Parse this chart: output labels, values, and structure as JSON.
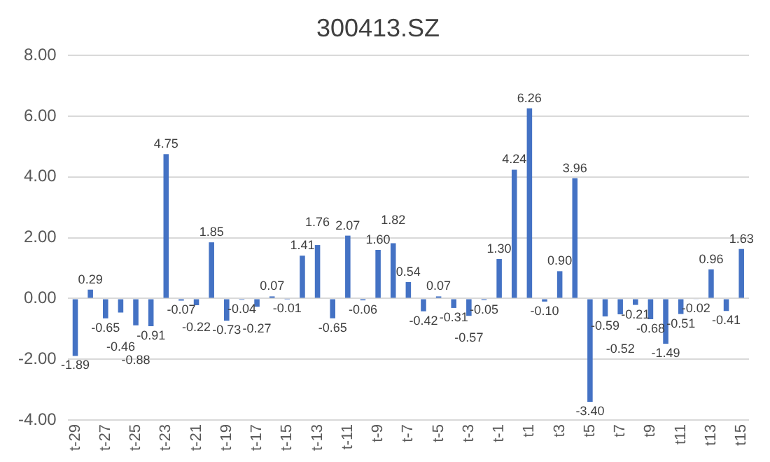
{
  "chart_data": {
    "type": "bar",
    "title": "300413.SZ",
    "categories": [
      "t-29",
      null,
      "t-27",
      null,
      "t-25",
      null,
      "t-23",
      null,
      "t-21",
      null,
      "t-19",
      null,
      "t-17",
      null,
      "t-15",
      null,
      "t-13",
      null,
      "t-11",
      null,
      "t-9",
      null,
      "t-7",
      null,
      "t-5",
      null,
      "t-3",
      null,
      "t-1",
      null,
      "t1",
      null,
      "t3",
      null,
      "t5",
      null,
      "t7",
      null,
      "t9",
      null,
      "t11",
      null,
      "t13",
      null,
      "t15"
    ],
    "values": [
      -1.89,
      0.29,
      -0.65,
      -0.46,
      -0.88,
      -0.91,
      4.75,
      -0.07,
      -0.22,
      1.85,
      -0.73,
      -0.04,
      -0.27,
      0.07,
      -0.01,
      1.41,
      1.76,
      -0.65,
      2.07,
      -0.06,
      1.6,
      1.82,
      0.54,
      -0.42,
      0.07,
      -0.31,
      -0.57,
      -0.05,
      1.3,
      4.24,
      6.26,
      -0.1,
      0.9,
      3.96,
      -3.4,
      -0.59,
      -0.52,
      -0.21,
      -0.68,
      -1.49,
      -0.51,
      -0.02,
      0.96,
      -0.41,
      1.63
    ],
    "color": "#4472c4",
    "ylim": [
      -4,
      8
    ],
    "yticks": [
      {
        "value": -4,
        "label": "-4.00"
      },
      {
        "value": -2,
        "label": "-2.00"
      },
      {
        "value": 0,
        "label": "0.00"
      },
      {
        "value": 2,
        "label": "2.00"
      },
      {
        "value": 4,
        "label": "4.00"
      },
      {
        "value": 6,
        "label": "6.00"
      },
      {
        "value": 8,
        "label": "8.00"
      }
    ],
    "value_labels": [
      "-1.89",
      "0.29",
      "-0.65",
      "-0.46",
      "-0.88",
      "-0.91",
      "4.75",
      "-0.07",
      "-0.22",
      "1.85",
      "-0.73",
      "-0.04",
      "-0.27",
      "0.07",
      "-0.01",
      "1.41",
      "1.76",
      "-0.65",
      "2.07",
      "-0.06",
      "1.60",
      "1.82",
      "0.54",
      "-0.42",
      "0.07",
      "-0.31",
      "-0.57",
      "-0.05",
      "1.30",
      "4.24",
      "6.26",
      "-0.10",
      "0.90",
      "3.96",
      "-3.40",
      "-0.59",
      "-0.52",
      "-0.21",
      "-0.68",
      "-1.49",
      "-0.51",
      "-0.02",
      "0.96",
      "-0.41",
      "1.63"
    ],
    "grid": "y",
    "legend": false
  }
}
